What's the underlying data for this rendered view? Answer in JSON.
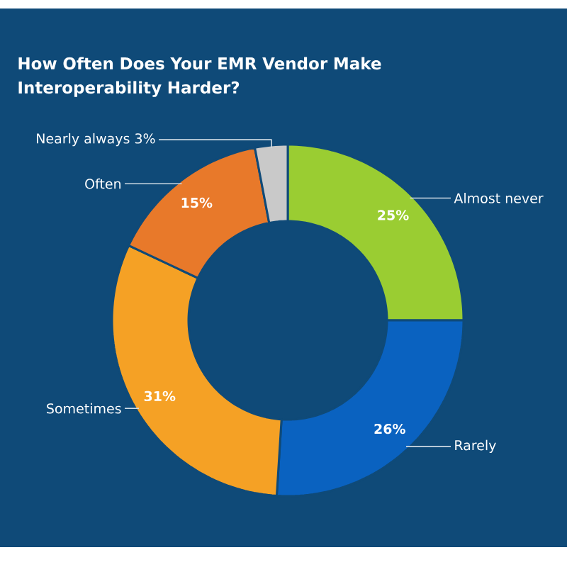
{
  "chart_data": {
    "type": "donut",
    "title": "How Often Does Your EMR Vendor Make Interoperability Harder?",
    "categories": [
      "Almost never",
      "Rarely",
      "Sometimes",
      "Often",
      "Nearly always"
    ],
    "values": [
      25,
      26,
      31,
      15,
      3
    ],
    "value_labels": [
      "25%",
      "26%",
      "31%",
      "15%",
      "3%"
    ],
    "colors": [
      "#9acd32",
      "#0a62c0",
      "#f5a125",
      "#e8792a",
      "#c9c9c9"
    ]
  }
}
